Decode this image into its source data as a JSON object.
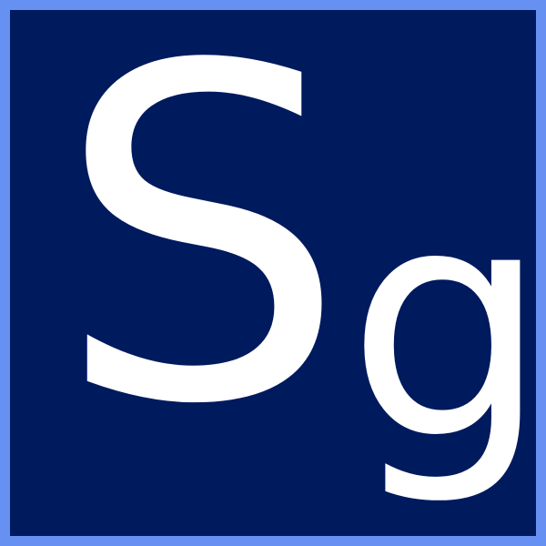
{
  "symbol": {
    "primary_letter": "S",
    "secondary_letter": "g"
  },
  "colors": {
    "border": "#6690f2",
    "background": "#001a5e",
    "text": "#ffffff"
  }
}
